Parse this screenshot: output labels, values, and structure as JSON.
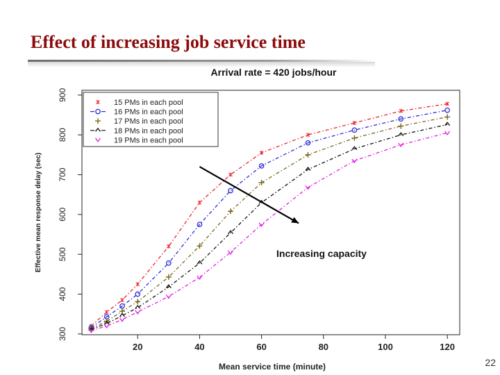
{
  "slide": {
    "title": "Effect of increasing job service time",
    "page_number": "22"
  },
  "chart_data": {
    "type": "line",
    "title": "Arrival rate = 420 jobs/hour",
    "xlabel": "Mean service time (minute)",
    "ylabel": "Effective mean response delay (sec)",
    "xlim": [
      2,
      124
    ],
    "ylim": [
      298,
      912
    ],
    "xticks": [
      20,
      40,
      60,
      80,
      100,
      120
    ],
    "yticks": [
      300,
      400,
      500,
      600,
      700,
      800,
      900
    ],
    "grid": false,
    "legend_position": "top-left",
    "x": [
      5,
      10,
      15,
      20,
      30,
      40,
      50,
      60,
      75,
      90,
      105,
      120
    ],
    "series": [
      {
        "name": "15 PMs in each pool",
        "legend_symbol": "*",
        "marker": "*",
        "color": "#e8232a",
        "values": [
          320,
          355,
          385,
          425,
          520,
          630,
          700,
          755,
          800,
          830,
          860,
          878
        ]
      },
      {
        "name": "16 PMs in each pool",
        "legend_symbol": "-o-",
        "marker": "o",
        "color": "#2a2ad6",
        "values": [
          316,
          343,
          370,
          400,
          478,
          575,
          660,
          722,
          780,
          812,
          840,
          862
        ]
      },
      {
        "name": "17 PMs in each pool",
        "legend_symbol": "+",
        "marker": "+",
        "color": "#77661a",
        "values": [
          313,
          332,
          357,
          381,
          443,
          521,
          608,
          680,
          750,
          792,
          822,
          845
        ]
      },
      {
        "name": "18 PMs in each pool",
        "legend_symbol": "-^-",
        "marker": "^",
        "color": "#111111",
        "values": [
          311,
          326,
          346,
          366,
          418,
          478,
          554,
          630,
          713,
          765,
          800,
          826
        ]
      },
      {
        "name": "19 PMs in each pool",
        "legend_symbol": "v",
        "marker": "v",
        "color": "#e020e0",
        "values": [
          308,
          320,
          336,
          355,
          394,
          442,
          505,
          575,
          668,
          735,
          775,
          805
        ]
      }
    ],
    "annotations": [
      {
        "text": "Increasing capacity",
        "arrow_from": [
          40,
          720
        ],
        "arrow_to": [
          72,
          578
        ]
      }
    ]
  }
}
